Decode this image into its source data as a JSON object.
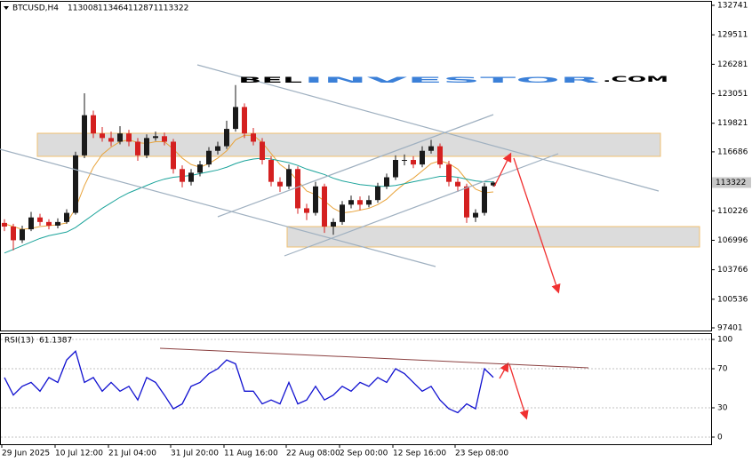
{
  "chart_data": [
    {
      "type": "candlestick",
      "symbol": "BTCUSD,H4",
      "watermark": {
        "prefix": "BEL",
        "brand": "INVESTOR",
        "suffix": ".COM"
      },
      "categories": [
        "29 Jun 2025",
        null,
        null,
        null,
        null,
        null,
        "10 Jul 12:00",
        null,
        null,
        null,
        null,
        null,
        "21 Jul 04:00",
        null,
        null,
        null,
        null,
        null,
        null,
        "31 Jul 20:00",
        null,
        null,
        null,
        null,
        null,
        "11 Aug 16:00",
        null,
        null,
        null,
        null,
        null,
        null,
        "22 Aug 08:00",
        null,
        null,
        null,
        null,
        null,
        "2 Sep 00:00",
        null,
        null,
        null,
        null,
        null,
        "12 Sep 16:00",
        null,
        null,
        null,
        null,
        null,
        null,
        "23 Sep 08:00",
        null,
        null,
        null,
        null
      ],
      "open": [
        108900,
        108500,
        107000,
        108200,
        109500,
        109000,
        108600,
        109000,
        110000,
        116300,
        120700,
        118700,
        118200,
        117800,
        118700,
        117800,
        116300,
        118200,
        118400,
        117800,
        114800,
        113400,
        114400,
        115300,
        116800,
        117300,
        119200,
        121600,
        118700,
        117800,
        115800,
        113400,
        112900,
        114800,
        110500,
        110000,
        112900,
        108500,
        109000,
        110900,
        111400,
        110900,
        111400,
        112900,
        113900,
        115800,
        115800,
        115300,
        116800,
        117300,
        115300,
        113400,
        112900,
        109500,
        110000,
        113008
      ],
      "high": [
        109300,
        108800,
        108600,
        110100,
        109900,
        109300,
        109400,
        110400,
        116700,
        123100,
        121200,
        119400,
        118900,
        119500,
        119100,
        118200,
        118600,
        118900,
        118800,
        118100,
        115200,
        114800,
        115700,
        117200,
        117800,
        120100,
        124000,
        122000,
        119300,
        118200,
        116200,
        113900,
        115300,
        115100,
        111000,
        113400,
        113200,
        109400,
        111300,
        111900,
        111800,
        111900,
        113300,
        114300,
        116300,
        116400,
        116200,
        117300,
        118000,
        117600,
        115700,
        113800,
        113200,
        110400,
        113300,
        113464
      ],
      "low": [
        108000,
        105900,
        106700,
        108000,
        108600,
        108200,
        108300,
        108800,
        109800,
        116000,
        118200,
        117800,
        117300,
        117500,
        117300,
        115700,
        116000,
        117900,
        117400,
        114300,
        112800,
        113000,
        114000,
        115000,
        116400,
        117000,
        118900,
        118200,
        117400,
        115300,
        112900,
        112300,
        112600,
        109900,
        109200,
        109700,
        107800,
        107600,
        108700,
        110500,
        110300,
        110600,
        111100,
        112600,
        113600,
        115200,
        114900,
        115000,
        116500,
        114900,
        112900,
        112300,
        108900,
        109000,
        109700,
        112871
      ],
      "close": [
        108500,
        107000,
        108200,
        109500,
        109000,
        108600,
        109000,
        110000,
        116300,
        120700,
        118700,
        118200,
        117800,
        118700,
        117800,
        116300,
        118200,
        118400,
        117800,
        114800,
        113400,
        114400,
        115300,
        116800,
        117300,
        119200,
        121600,
        118700,
        117800,
        115800,
        113400,
        112900,
        114800,
        110500,
        110000,
        112900,
        108500,
        109000,
        110900,
        111400,
        110900,
        111400,
        112900,
        113900,
        115800,
        115800,
        115300,
        116800,
        117300,
        115300,
        113400,
        112900,
        109500,
        110000,
        112900,
        113322
      ],
      "up_color": "#1a1a1a",
      "down_color": "#d42020",
      "moving_averages": [
        {
          "color": "#e8a33a",
          "values": [
            108800,
            108500,
            108200,
            108300,
            108500,
            108600,
            108700,
            108900,
            110500,
            113000,
            115000,
            116400,
            117200,
            117800,
            118000,
            117700,
            117600,
            117800,
            117800,
            117000,
            116000,
            115300,
            115000,
            115400,
            116000,
            116800,
            118000,
            118500,
            118500,
            117700,
            116500,
            115300,
            114600,
            113500,
            112400,
            112000,
            111300,
            110500,
            110000,
            110100,
            110300,
            110500,
            110900,
            111500,
            112400,
            113200,
            113800,
            114600,
            115400,
            115700,
            115400,
            114800,
            113600,
            112600,
            112200,
            112300
          ]
        },
        {
          "color": "#1aa39a",
          "values": [
            105600,
            106000,
            106400,
            106800,
            107200,
            107500,
            107700,
            107900,
            108400,
            109100,
            109800,
            110500,
            111100,
            111700,
            112200,
            112600,
            113000,
            113400,
            113700,
            113900,
            114000,
            114100,
            114300,
            114500,
            114700,
            115000,
            115400,
            115700,
            115900,
            116000,
            115900,
            115700,
            115500,
            115200,
            114800,
            114500,
            114200,
            113800,
            113500,
            113300,
            113100,
            113000,
            112900,
            112900,
            113000,
            113200,
            113400,
            113600,
            113800,
            114000,
            114000,
            113900,
            113700,
            113500,
            113400,
            113400
          ]
        }
      ],
      "current_price": 113322,
      "ylim": [
        97109,
        133130
      ],
      "yticks": [
        132741,
        129511,
        126281,
        123051,
        119821,
        116686,
        110226,
        106996,
        103766,
        100536,
        97401
      ]
    },
    {
      "type": "line",
      "name": "RSI(13)",
      "color": "#1010d0",
      "values": [
        61,
        43,
        52,
        56,
        47,
        61,
        56,
        79,
        88,
        56,
        61,
        47,
        56,
        47,
        52,
        38,
        61,
        56,
        43,
        29,
        34,
        52,
        56,
        65,
        70,
        79,
        75,
        47,
        47,
        34,
        38,
        34,
        56,
        34,
        38,
        52,
        38,
        43,
        52,
        47,
        56,
        52,
        61,
        56,
        70,
        65,
        56,
        47,
        52,
        38,
        29,
        25,
        34,
        29,
        70,
        61.1387
      ],
      "ylim": [
        -7.3,
        106.4
      ],
      "yticks": [
        0,
        30,
        70,
        100
      ]
    }
  ]
}
